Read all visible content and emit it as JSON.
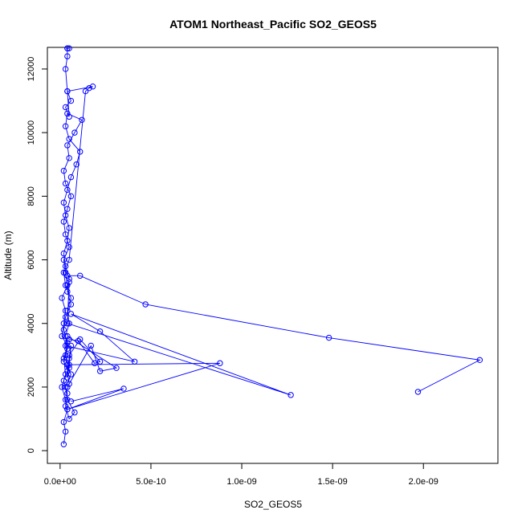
{
  "chart_data": {
    "type": "line",
    "title": "ATOM1 Northeast_Pacific SO2_GEOS5",
    "xlabel": "SO2_GEOS5",
    "ylabel": "Altitude (m)",
    "xlim": [
      -7e-11,
      2.41e-09
    ],
    "ylim": [
      -400,
      12680
    ],
    "x_ticks": [
      0,
      5e-10,
      1e-09,
      1.5e-09,
      2e-09
    ],
    "x_tick_labels": [
      "0.0e+00",
      "5.0e-10",
      "1.0e-09",
      "1.5e-09",
      "2.0e-09"
    ],
    "y_ticks": [
      0,
      2000,
      4000,
      6000,
      8000,
      10000,
      12000
    ],
    "y_tick_labels": [
      "0",
      "2000",
      "4000",
      "6000",
      "8000",
      "10000",
      "12000"
    ],
    "grid": false,
    "legend": "none",
    "marker": "open-circle",
    "series_color": "#0000ff",
    "series": [
      {
        "x": [
          2e-11,
          3e-11,
          2e-11,
          4e-11,
          3e-11,
          1e-11,
          3e-11,
          2e-11,
          4e-11,
          1e-11,
          2e-11,
          3e-11,
          1e-11,
          4e-11,
          3e-11,
          2e-11,
          5e-11,
          3e-11,
          2e-11,
          4e-11,
          6e-11,
          3e-11,
          2e-11,
          5e-11,
          4e-11,
          8e-11,
          1.2e-10,
          4e-11,
          3e-11,
          5e-11,
          1.1e-10,
          9e-11,
          6e-11,
          4e-11,
          2e-11,
          3e-11,
          5e-11,
          4e-11,
          2e-11,
          3e-11,
          5e-11,
          4e-11,
          6e-11,
          3e-11,
          2e-11,
          4e-11,
          3e-11,
          5e-11,
          2e-11,
          4e-11,
          3e-11,
          5e-11,
          8e-11,
          4e-11,
          3e-11,
          6e-11,
          2e-11,
          4e-11,
          3e-11,
          5e-11,
          4e-11,
          6e-11,
          3e-11,
          2e-11,
          5e-11,
          1.4e-10,
          1.6e-10,
          1.8e-10,
          4e-11,
          6e-11,
          3e-11,
          5e-11,
          4e-11,
          3e-11,
          4e-11,
          4e-11,
          5e-11,
          4e-11
        ],
        "y": [
          200,
          600,
          900,
          1300,
          1600,
          2000,
          2400,
          2900,
          3300,
          3600,
          4000,
          4400,
          4800,
          5200,
          5600,
          6000,
          6400,
          6800,
          7200,
          7600,
          8000,
          8400,
          8800,
          9200,
          9600,
          10000,
          10400,
          10600,
          10200,
          9800,
          9400,
          9000,
          8600,
          8200,
          7800,
          7400,
          7000,
          6600,
          6200,
          5800,
          5400,
          5000,
          4600,
          4200,
          3800,
          3400,
          3000,
          2600,
          2200,
          1800,
          1400,
          1000,
          1200,
          1600,
          2000,
          2400,
          2800,
          3200,
          3600,
          4000,
          4400,
          4800,
          5200,
          5600,
          6000,
          11300,
          11400,
          11450,
          11300,
          11000,
          10800,
          10500,
          11300,
          12000,
          12400,
          12650,
          12650,
          12650
        ]
      },
      {
        "x": [
          4e-11,
          1.1e-10,
          4.7e-10,
          1.48e-09,
          2.31e-09,
          1.97e-09
        ],
        "y": [
          5500,
          5500,
          4600,
          3550,
          2850,
          1850
        ]
      },
      {
        "x": [
          5e-11,
          4e-11,
          1.27e-09,
          6e-11,
          2.2e-10,
          4.1e-10,
          3e-11
        ],
        "y": [
          5300,
          4000,
          1750,
          4300,
          3750,
          2800,
          3300
        ]
      },
      {
        "x": [
          4e-11,
          8.8e-10,
          4e-11,
          3.5e-10,
          6e-11
        ],
        "y": [
          2700,
          2750,
          1300,
          1950,
          1550
        ]
      },
      {
        "x": [
          4e-11,
          3.1e-10,
          2.2e-10,
          1.7e-10,
          4e-11
        ],
        "y": [
          3600,
          2600,
          2500,
          3300,
          2000
        ]
      },
      {
        "x": [
          5e-11,
          1e-10,
          1.9e-10,
          2.2e-10,
          1.1e-10,
          5e-11
        ],
        "y": [
          3500,
          3450,
          2750,
          2800,
          3500,
          3000
        ]
      },
      {
        "x": [
          5e-11,
          4e-11,
          5e-11,
          6e-11,
          5e-11,
          4e-11
        ],
        "y": [
          2100,
          2500,
          2900,
          3300,
          2700,
          2300
        ]
      }
    ]
  }
}
